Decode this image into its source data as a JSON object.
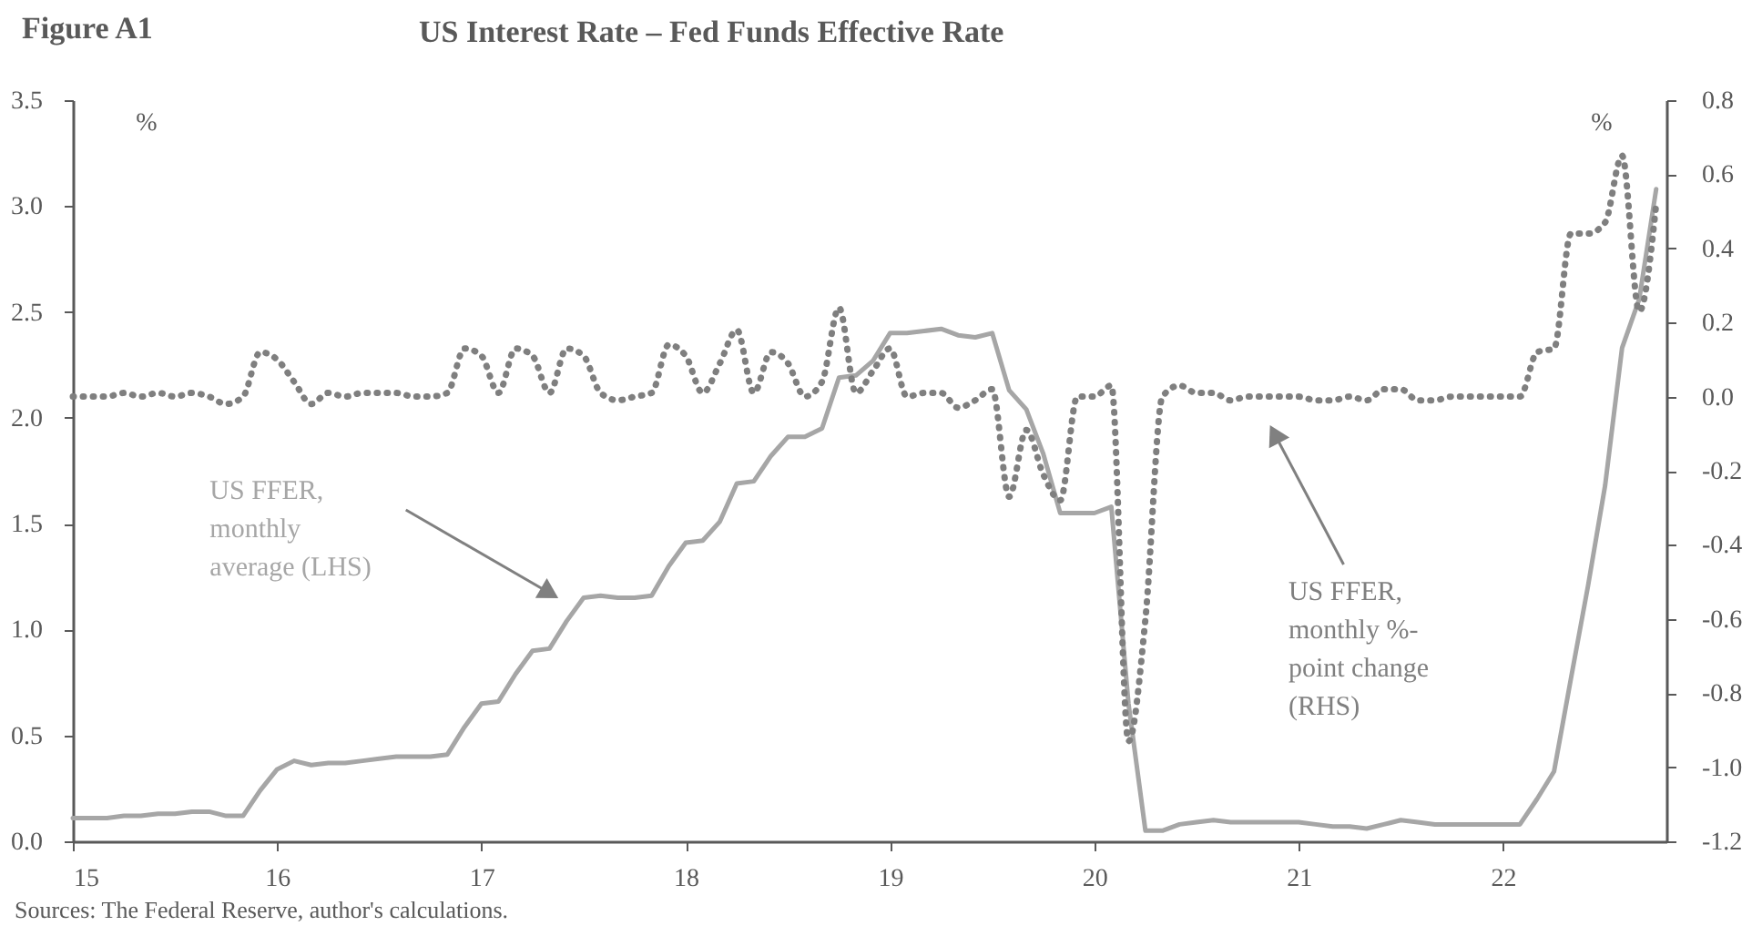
{
  "chart_data": {
    "type": "line",
    "title": "US Interest Rate – Fed Funds Effective Rate",
    "ylabel": "%",
    "y2label": "%",
    "x": [
      15,
      15.083,
      15.167,
      15.25,
      15.333,
      15.417,
      15.5,
      15.583,
      15.667,
      15.75,
      15.833,
      15.917,
      16,
      16.083,
      16.167,
      16.25,
      16.333,
      16.417,
      16.5,
      16.583,
      16.667,
      16.75,
      16.833,
      16.917,
      17,
      17.083,
      17.167,
      17.25,
      17.333,
      17.417,
      17.5,
      17.583,
      17.667,
      17.75,
      17.833,
      17.917,
      18,
      18.083,
      18.167,
      18.25,
      18.333,
      18.417,
      18.5,
      18.583,
      18.667,
      18.75,
      18.833,
      18.917,
      19,
      19.083,
      19.167,
      19.25,
      19.333,
      19.417,
      19.5,
      19.583,
      19.667,
      19.75,
      19.833,
      19.917,
      20,
      20.083,
      20.167,
      20.25,
      20.333,
      20.417,
      20.5,
      20.583,
      20.667,
      20.75,
      20.833,
      20.917,
      21,
      21.083,
      21.167,
      21.25,
      21.333,
      21.417,
      21.5,
      21.583,
      21.667,
      21.75,
      21.833,
      21.917,
      22,
      22.083,
      22.167,
      22.25,
      22.333,
      22.417,
      22.5,
      22.583,
      22.667,
      22.75
    ],
    "series": [
      {
        "name": "US FFER, monthly average (LHS)",
        "color": "#a6a6a6",
        "line_style": "solid",
        "values": [
          0.11,
          0.11,
          0.11,
          0.12,
          0.12,
          0.13,
          0.13,
          0.14,
          0.14,
          0.12,
          0.12,
          0.24,
          0.34,
          0.38,
          0.36,
          0.37,
          0.37,
          0.38,
          0.39,
          0.4,
          0.4,
          0.4,
          0.41,
          0.54,
          0.65,
          0.66,
          0.79,
          0.9,
          0.91,
          1.04,
          1.15,
          1.16,
          1.15,
          1.15,
          1.16,
          1.3,
          1.41,
          1.42,
          1.51,
          1.69,
          1.7,
          1.82,
          1.91,
          1.91,
          1.95,
          2.19,
          2.2,
          2.27,
          2.4,
          2.4,
          2.41,
          2.42,
          2.39,
          2.38,
          2.4,
          2.13,
          2.04,
          1.83,
          1.55,
          1.55,
          1.55,
          1.58,
          0.65,
          0.05,
          0.05,
          0.08,
          0.09,
          0.1,
          0.09,
          0.09,
          0.09,
          0.09,
          0.09,
          0.08,
          0.07,
          0.07,
          0.06,
          0.08,
          0.1,
          0.09,
          0.08,
          0.08,
          0.08,
          0.08,
          0.08,
          0.08,
          0.2,
          0.33,
          0.77,
          1.21,
          1.68,
          2.33,
          2.56,
          3.08
        ]
      },
      {
        "name": "US FFER, monthly %-point change (RHS)",
        "color": "#7f7f7f",
        "line_style": "dotted",
        "axis": "y2",
        "values": [
          0,
          0,
          0,
          0.01,
          0,
          0.01,
          0,
          0.01,
          0,
          -0.02,
          0,
          0.12,
          0.1,
          0.04,
          -0.02,
          0.01,
          0,
          0.01,
          0.01,
          0.01,
          0,
          0,
          0.01,
          0.13,
          0.11,
          0.01,
          0.13,
          0.11,
          0.01,
          0.13,
          0.11,
          0.01,
          -0.01,
          0,
          0.01,
          0.14,
          0.11,
          0.01,
          0.09,
          0.18,
          0.01,
          0.12,
          0.09,
          0,
          0.04,
          0.24,
          0.01,
          0.07,
          0.13,
          0,
          0.01,
          0.01,
          -0.03,
          -0.01,
          0.02,
          -0.27,
          -0.09,
          -0.21,
          -0.28,
          0,
          0,
          0.03,
          -0.93,
          -0.6,
          0,
          0.03,
          0.01,
          0.01,
          -0.01,
          0,
          0,
          0,
          0,
          -0.01,
          -0.01,
          0,
          -0.01,
          0.02,
          0.02,
          -0.01,
          -0.01,
          0,
          0,
          0,
          0,
          0,
          0.12,
          0.13,
          0.44,
          0.44,
          0.47,
          0.65,
          0.23,
          0.52
        ]
      }
    ],
    "xlim": [
      15,
      22.8
    ],
    "xticks": [
      15,
      16,
      17,
      18,
      19,
      20,
      21,
      22
    ],
    "ylim": [
      0,
      3.5
    ],
    "yticks": [
      {
        "value": 0,
        "label": "0.0"
      },
      0.5,
      {
        "value": 1,
        "label": "1.0"
      },
      1.5,
      {
        "value": 2,
        "label": "2.0"
      },
      2.5,
      {
        "value": 3,
        "label": "3.0"
      },
      3.5
    ],
    "y2lim": [
      -1.2,
      0.8
    ],
    "y2ticks": [
      -1.2,
      {
        "value": -1,
        "label": "-1.0"
      },
      -0.8,
      -0.6,
      -0.4,
      -0.2,
      {
        "value": 0,
        "label": "0.0"
      },
      0.2,
      0.4,
      0.6,
      0.8
    ],
    "annotations": [
      "Figure A1",
      "Sources: The Federal Reserve, author's calculations."
    ]
  }
}
